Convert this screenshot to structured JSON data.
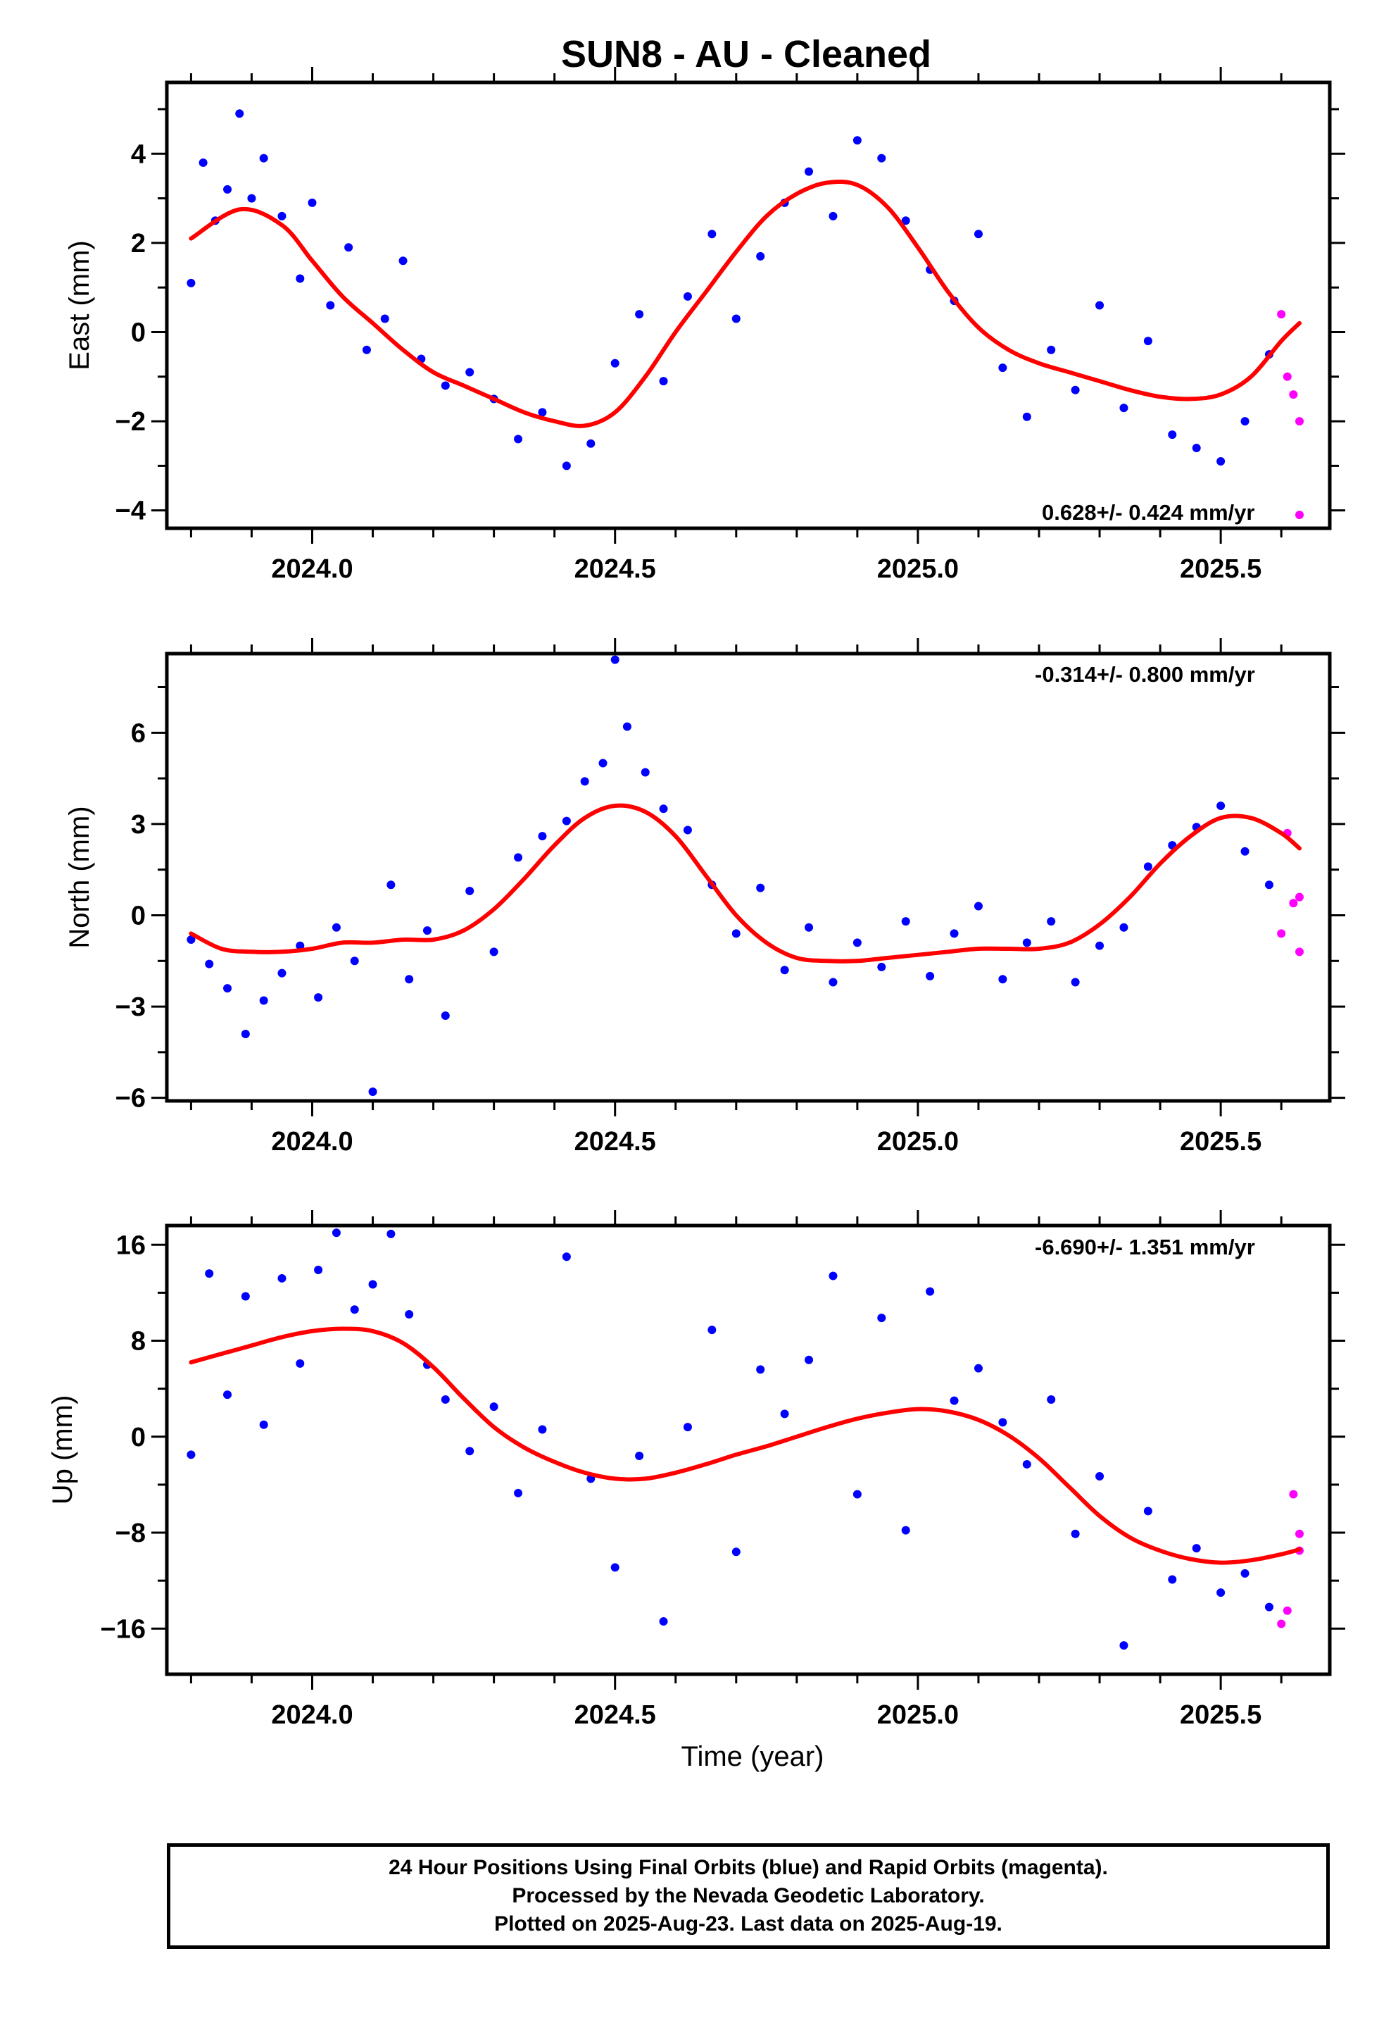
{
  "title": "SUN8  - AU - Cleaned",
  "colors": {
    "final": "#0000ff",
    "rapid": "#ff00ff",
    "fit": "#ff0000",
    "axis": "#000000"
  },
  "chart_data": [
    {
      "type": "scatter",
      "ylabel": "East (mm)",
      "rate": "0.628+/- 0.424 mm/yr",
      "xlim": [
        2023.76,
        2025.68
      ],
      "ylim": [
        -4.4,
        5.6
      ],
      "xticks": [
        2024.0,
        2024.5,
        2025.0,
        2025.5
      ],
      "xtick_labels": [
        "2024.0",
        "2024.5",
        "2025.0",
        "2025.5"
      ],
      "yticks": [
        -4,
        -2,
        0,
        2,
        4
      ],
      "ytick_labels": [
        "−4",
        "−2",
        "0",
        "2",
        "4"
      ],
      "fit": {
        "x": [
          2023.8,
          2023.88,
          2023.95,
          2024.0,
          2024.05,
          2024.1,
          2024.15,
          2024.2,
          2024.25,
          2024.3,
          2024.35,
          2024.4,
          2024.45,
          2024.5,
          2024.55,
          2024.6,
          2024.65,
          2024.7,
          2024.75,
          2024.8,
          2024.85,
          2024.9,
          2024.95,
          2025.0,
          2025.05,
          2025.1,
          2025.15,
          2025.2,
          2025.25,
          2025.3,
          2025.35,
          2025.4,
          2025.45,
          2025.5,
          2025.55,
          2025.6,
          2025.63
        ],
        "y": [
          2.1,
          2.75,
          2.4,
          1.6,
          0.8,
          0.2,
          -0.4,
          -0.9,
          -1.2,
          -1.5,
          -1.8,
          -2.0,
          -2.1,
          -1.8,
          -1.0,
          0.0,
          0.9,
          1.8,
          2.6,
          3.1,
          3.35,
          3.3,
          2.8,
          1.9,
          0.9,
          0.1,
          -0.4,
          -0.7,
          -0.9,
          -1.1,
          -1.3,
          -1.45,
          -1.5,
          -1.4,
          -1.0,
          -0.2,
          0.2
        ]
      },
      "final": {
        "x": [
          2023.8,
          2023.82,
          2023.84,
          2023.86,
          2023.88,
          2023.9,
          2023.92,
          2023.95,
          2023.98,
          2024.0,
          2024.03,
          2024.06,
          2024.09,
          2024.12,
          2024.15,
          2024.18,
          2024.22,
          2024.26,
          2024.3,
          2024.34,
          2024.38,
          2024.42,
          2024.46,
          2024.5,
          2024.54,
          2024.58,
          2024.62,
          2024.66,
          2024.7,
          2024.74,
          2024.78,
          2024.82,
          2024.86,
          2024.9,
          2024.94,
          2024.98,
          2025.02,
          2025.06,
          2025.1,
          2025.14,
          2025.18,
          2025.22,
          2025.26,
          2025.3,
          2025.34,
          2025.38,
          2025.42,
          2025.46,
          2025.5,
          2025.54,
          2025.58
        ],
        "y": [
          1.1,
          3.8,
          2.5,
          3.2,
          4.9,
          3.0,
          3.9,
          2.6,
          1.2,
          2.9,
          0.6,
          1.9,
          -0.4,
          0.3,
          1.6,
          -0.6,
          -1.2,
          -0.9,
          -1.5,
          -2.4,
          -1.8,
          -3.0,
          -2.5,
          -0.7,
          0.4,
          -1.1,
          0.8,
          2.2,
          0.3,
          1.7,
          2.9,
          3.6,
          2.6,
          4.3,
          3.9,
          2.5,
          1.4,
          0.7,
          2.2,
          -0.8,
          -1.9,
          -0.4,
          -1.3,
          0.6,
          -1.7,
          -0.2,
          -2.3,
          -2.6,
          -2.9,
          -2.0,
          -0.5
        ]
      },
      "rapid": {
        "x": [
          2025.6,
          2025.61,
          2025.62,
          2025.63,
          2025.63
        ],
        "y": [
          0.4,
          -1.0,
          -1.4,
          -2.0,
          -4.1
        ]
      }
    },
    {
      "type": "scatter",
      "ylabel": "North (mm)",
      "rate": "-0.314+/- 0.800 mm/yr",
      "xlim": [
        2023.76,
        2025.68
      ],
      "ylim": [
        -6.1,
        8.6
      ],
      "xticks": [
        2024.0,
        2024.5,
        2025.0,
        2025.5
      ],
      "xtick_labels": [
        "2024.0",
        "2024.5",
        "2025.0",
        "2025.5"
      ],
      "yticks": [
        -6,
        -3,
        0,
        3,
        6
      ],
      "ytick_labels": [
        "−6",
        "−3",
        "0",
        "3",
        "6"
      ],
      "fit": {
        "x": [
          2023.8,
          2023.85,
          2023.9,
          2023.95,
          2024.0,
          2024.05,
          2024.1,
          2024.15,
          2024.2,
          2024.25,
          2024.3,
          2024.35,
          2024.4,
          2024.45,
          2024.5,
          2024.55,
          2024.6,
          2024.65,
          2024.7,
          2024.75,
          2024.8,
          2024.85,
          2024.9,
          2024.95,
          2025.0,
          2025.05,
          2025.1,
          2025.15,
          2025.2,
          2025.25,
          2025.3,
          2025.35,
          2025.4,
          2025.45,
          2025.5,
          2025.55,
          2025.6,
          2025.63
        ],
        "y": [
          -0.6,
          -1.1,
          -1.2,
          -1.2,
          -1.1,
          -0.9,
          -0.9,
          -0.8,
          -0.8,
          -0.5,
          0.2,
          1.2,
          2.3,
          3.2,
          3.6,
          3.4,
          2.6,
          1.3,
          0.0,
          -0.9,
          -1.4,
          -1.5,
          -1.5,
          -1.4,
          -1.3,
          -1.2,
          -1.1,
          -1.1,
          -1.1,
          -0.9,
          -0.3,
          0.6,
          1.7,
          2.6,
          3.2,
          3.2,
          2.7,
          2.2
        ]
      },
      "final": {
        "x": [
          2023.8,
          2023.83,
          2023.86,
          2023.89,
          2023.92,
          2023.95,
          2023.98,
          2024.01,
          2024.04,
          2024.07,
          2024.1,
          2024.13,
          2024.16,
          2024.19,
          2024.22,
          2024.26,
          2024.3,
          2024.34,
          2024.38,
          2024.42,
          2024.45,
          2024.48,
          2024.5,
          2024.52,
          2024.55,
          2024.58,
          2024.62,
          2024.66,
          2024.7,
          2024.74,
          2024.78,
          2024.82,
          2024.86,
          2024.9,
          2024.94,
          2024.98,
          2025.02,
          2025.06,
          2025.1,
          2025.14,
          2025.18,
          2025.22,
          2025.26,
          2025.3,
          2025.34,
          2025.38,
          2025.42,
          2025.46,
          2025.5,
          2025.54,
          2025.58
        ],
        "y": [
          -0.8,
          -1.6,
          -2.4,
          -3.9,
          -2.8,
          -1.9,
          -1.0,
          -2.7,
          -0.4,
          -1.5,
          -5.8,
          1.0,
          -2.1,
          -0.5,
          -3.3,
          0.8,
          -1.2,
          1.9,
          2.6,
          3.1,
          4.4,
          5.0,
          8.4,
          6.2,
          4.7,
          3.5,
          2.8,
          1.0,
          -0.6,
          0.9,
          -1.8,
          -0.4,
          -2.2,
          -0.9,
          -1.7,
          -0.2,
          -2.0,
          -0.6,
          0.3,
          -2.1,
          -0.9,
          -0.2,
          -2.2,
          -1.0,
          -0.4,
          1.6,
          2.3,
          2.9,
          3.6,
          2.1,
          1.0
        ]
      },
      "rapid": {
        "x": [
          2025.6,
          2025.61,
          2025.62,
          2025.63,
          2025.63
        ],
        "y": [
          -0.6,
          2.7,
          0.4,
          -1.2,
          0.6
        ]
      }
    },
    {
      "type": "scatter",
      "ylabel": "Up (mm)",
      "xlabel": "Time (year)",
      "rate": "-6.690+/- 1.351 mm/yr",
      "xlim": [
        2023.76,
        2025.68
      ],
      "ylim": [
        -19.8,
        17.6
      ],
      "xticks": [
        2024.0,
        2024.5,
        2025.0,
        2025.5
      ],
      "xtick_labels": [
        "2024.0",
        "2024.5",
        "2025.0",
        "2025.5"
      ],
      "yticks": [
        -16,
        -8,
        0,
        8,
        16
      ],
      "ytick_labels": [
        "−16",
        "−8",
        "0",
        "8",
        "16"
      ],
      "fit": {
        "x": [
          2023.8,
          2023.85,
          2023.9,
          2023.95,
          2024.0,
          2024.05,
          2024.1,
          2024.15,
          2024.2,
          2024.25,
          2024.3,
          2024.35,
          2024.4,
          2024.45,
          2024.5,
          2024.55,
          2024.6,
          2024.65,
          2024.7,
          2024.75,
          2024.8,
          2024.85,
          2024.9,
          2024.95,
          2025.0,
          2025.05,
          2025.1,
          2025.15,
          2025.2,
          2025.25,
          2025.3,
          2025.35,
          2025.4,
          2025.45,
          2025.5,
          2025.55,
          2025.6,
          2025.63
        ],
        "y": [
          6.2,
          6.9,
          7.6,
          8.3,
          8.8,
          9.0,
          8.8,
          7.8,
          5.8,
          3.2,
          0.8,
          -0.9,
          -2.1,
          -3.0,
          -3.5,
          -3.5,
          -3.0,
          -2.3,
          -1.5,
          -0.8,
          0.0,
          0.8,
          1.5,
          2.0,
          2.3,
          2.1,
          1.4,
          0.1,
          -1.8,
          -4.2,
          -6.6,
          -8.4,
          -9.5,
          -10.2,
          -10.5,
          -10.3,
          -9.8,
          -9.4
        ]
      },
      "final": {
        "x": [
          2023.8,
          2023.83,
          2023.86,
          2023.89,
          2023.92,
          2023.95,
          2023.98,
          2024.01,
          2024.04,
          2024.07,
          2024.1,
          2024.13,
          2024.16,
          2024.19,
          2024.22,
          2024.26,
          2024.3,
          2024.34,
          2024.38,
          2024.42,
          2024.46,
          2024.5,
          2024.54,
          2024.58,
          2024.62,
          2024.66,
          2024.7,
          2024.74,
          2024.78,
          2024.82,
          2024.86,
          2024.9,
          2024.94,
          2024.98,
          2025.02,
          2025.06,
          2025.1,
          2025.14,
          2025.18,
          2025.22,
          2025.26,
          2025.3,
          2025.34,
          2025.38,
          2025.42,
          2025.46,
          2025.5,
          2025.54,
          2025.58
        ],
        "y": [
          -1.5,
          13.6,
          3.5,
          11.7,
          1.0,
          13.2,
          6.1,
          13.9,
          17.0,
          10.6,
          12.7,
          16.9,
          10.2,
          6.0,
          3.1,
          -1.2,
          2.5,
          -4.7,
          0.6,
          15.0,
          -3.5,
          -10.9,
          -1.6,
          -15.4,
          0.8,
          8.9,
          -9.6,
          5.6,
          1.9,
          6.4,
          13.4,
          -4.8,
          9.9,
          -7.8,
          12.1,
          3.0,
          5.7,
          1.2,
          -2.3,
          3.1,
          -8.1,
          -3.3,
          -17.4,
          -6.2,
          -11.9,
          -9.3,
          -13.0,
          -11.4,
          -14.2
        ]
      },
      "rapid": {
        "x": [
          2025.6,
          2025.61,
          2025.62,
          2025.63,
          2025.63
        ],
        "y": [
          -15.6,
          -14.5,
          -4.8,
          -9.5,
          -8.1
        ]
      }
    }
  ],
  "footer": {
    "line1": "24 Hour Positions Using Final Orbits (blue) and Rapid Orbits (magenta).",
    "line2": "Processed by the Nevada Geodetic Laboratory.",
    "line3": "Plotted on 2025-Aug-23. Last data on 2025-Aug-19."
  }
}
